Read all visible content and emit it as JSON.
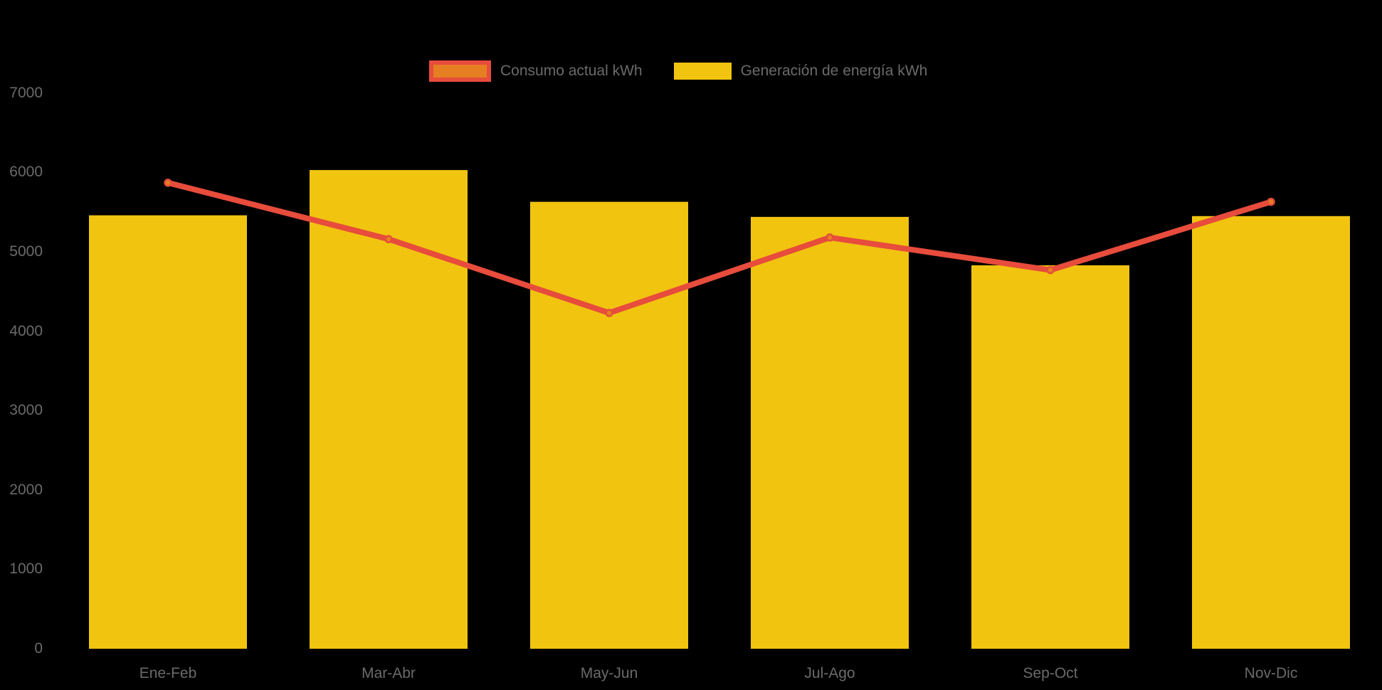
{
  "colors": {
    "background": "#000000",
    "text": "#6a6a6a",
    "bar": "#F1C40F",
    "line": "#E74C3C",
    "point_fill": "#E67E22"
  },
  "legend": {
    "items": [
      {
        "label": "Consumo actual kWh",
        "swatch_fill": "#E67E22",
        "swatch_border": "#E74C3C",
        "series_type": "line"
      },
      {
        "label": "Generación de energía kWh",
        "swatch_fill": "#F1C40F",
        "swatch_border": null,
        "series_type": "bar"
      }
    ]
  },
  "chart_data": {
    "type": "bar",
    "subtype": "bar-with-line-overlay",
    "title": "",
    "xlabel": "",
    "ylabel": "",
    "categories": [
      "Ene-Feb",
      "Mar-Abr",
      "May-Jun",
      "Jul-Ago",
      "Sep-Oct",
      "Nov-Dic"
    ],
    "series": [
      {
        "name": "Generación de energía kWh",
        "type": "bar",
        "color": "#F1C40F",
        "values": [
          5460,
          6030,
          5630,
          5440,
          4830,
          5450
        ]
      },
      {
        "name": "Consumo actual kWh",
        "type": "line",
        "color": "#E74C3C",
        "point_color": "#E67E22",
        "values": [
          5870,
          5160,
          4230,
          5180,
          4770,
          5630
        ]
      }
    ],
    "ylim": [
      0,
      7000
    ],
    "yticks": [
      0,
      1000,
      2000,
      3000,
      4000,
      5000,
      6000,
      7000
    ],
    "grid": false,
    "legend_position": "top-center",
    "units": "kWh"
  }
}
